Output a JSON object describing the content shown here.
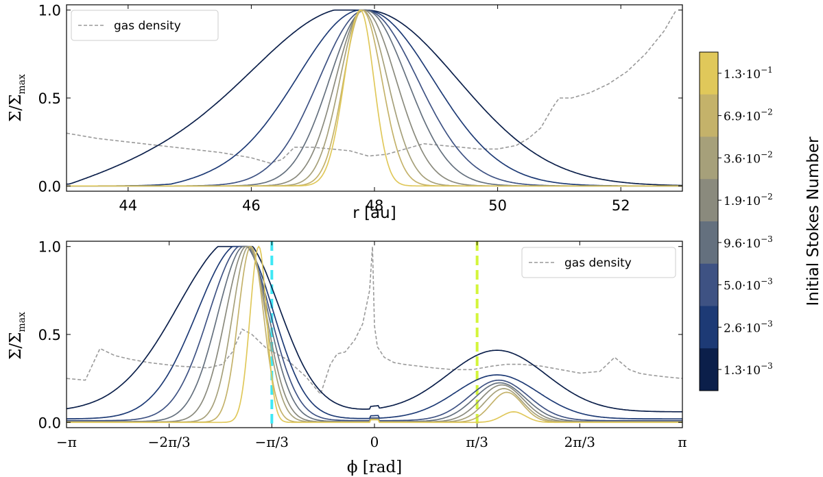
{
  "colors": {
    "gas": "#999999",
    "cyan_line": "#3ee8f5",
    "lime_line": "#d4f53a",
    "series": [
      "#0b1f4a",
      "#1d3a75",
      "#3e5283",
      "#64707e",
      "#8a8a7d",
      "#a6a07a",
      "#c4b26a",
      "#e0c85a"
    ]
  },
  "chart_data": [
    {
      "type": "line",
      "panel": "top",
      "xlabel": "r [au]",
      "ylabel_main": "Σ/Σ",
      "ylabel_sub": "max",
      "xlim": [
        43,
        53
      ],
      "ylim": [
        -0.03,
        1.03
      ],
      "xticks": [
        44,
        46,
        48,
        50,
        52
      ],
      "xtick_labels": [
        "44",
        "46",
        "48",
        "50",
        "52"
      ],
      "yticks": [
        0.0,
        0.5,
        1.0
      ],
      "ytick_labels": [
        "0.0",
        "0.5",
        "1.0"
      ],
      "legend": {
        "label": "gas density",
        "position": "top-left"
      },
      "gas_density": {
        "x": [
          43.0,
          43.5,
          44.0,
          44.5,
          45.0,
          45.5,
          46.0,
          46.3,
          46.5,
          46.7,
          47.0,
          47.3,
          47.6,
          47.9,
          48.2,
          48.5,
          48.8,
          49.1,
          49.4,
          49.7,
          50.0,
          50.3,
          50.5,
          50.7,
          50.9,
          51.0,
          51.2,
          51.5,
          51.8,
          52.1,
          52.4,
          52.7,
          52.9
        ],
        "y": [
          0.3,
          0.27,
          0.25,
          0.23,
          0.21,
          0.19,
          0.16,
          0.13,
          0.15,
          0.22,
          0.22,
          0.21,
          0.2,
          0.17,
          0.18,
          0.21,
          0.24,
          0.23,
          0.22,
          0.21,
          0.21,
          0.23,
          0.27,
          0.33,
          0.45,
          0.5,
          0.5,
          0.53,
          0.58,
          0.65,
          0.75,
          0.88,
          1.0
        ]
      },
      "series_params": [
        {
          "name": "1.3e-3",
          "center": 47.85,
          "sigma_left": 1.6,
          "sigma_right": 1.5,
          "shoulder": 0.25
        },
        {
          "name": "2.6e-3",
          "center": 47.85,
          "sigma_left": 1.05,
          "sigma_right": 1.1,
          "shoulder": 0.08
        },
        {
          "name": "5.0e-3",
          "center": 47.85,
          "sigma_left": 0.75,
          "sigma_right": 0.85,
          "shoulder": 0
        },
        {
          "name": "9.6e-3",
          "center": 47.85,
          "sigma_left": 0.58,
          "sigma_right": 0.68,
          "shoulder": 0
        },
        {
          "name": "1.9e-2",
          "center": 47.82,
          "sigma_left": 0.45,
          "sigma_right": 0.53,
          "shoulder": 0
        },
        {
          "name": "3.6e-2",
          "center": 47.8,
          "sigma_left": 0.36,
          "sigma_right": 0.41,
          "shoulder": 0
        },
        {
          "name": "6.9e-2",
          "center": 47.8,
          "sigma_left": 0.3,
          "sigma_right": 0.32,
          "shoulder": 0
        },
        {
          "name": "1.3e-1",
          "center": 47.77,
          "sigma_left": 0.26,
          "sigma_right": 0.22,
          "shoulder": 0
        }
      ]
    },
    {
      "type": "line",
      "panel": "bottom",
      "xlabel": "ϕ [rad]",
      "ylabel_main": "Σ/Σ",
      "ylabel_sub": "max",
      "xlim": [
        -3.1416,
        3.1416
      ],
      "ylim": [
        -0.03,
        1.03
      ],
      "xticks": [
        -3.1416,
        -2.0944,
        -1.0472,
        0,
        1.0472,
        2.0944,
        3.1416
      ],
      "xtick_labels": [
        "−π",
        "−2π/3",
        "−π/3",
        "0",
        "π/3",
        "2π/3",
        "π"
      ],
      "yticks": [
        0.0,
        0.5,
        1.0
      ],
      "ytick_labels": [
        "0.0",
        "0.5",
        "1.0"
      ],
      "legend": {
        "label": "gas density",
        "position": "top-right"
      },
      "vertical_lines": [
        {
          "x": -1.0472,
          "color": "cyan"
        },
        {
          "x": 1.0472,
          "color": "lime"
        }
      ],
      "gas_density": {
        "x": [
          -3.14,
          -2.95,
          -2.8,
          -2.65,
          -2.5,
          -2.3,
          -2.0,
          -1.7,
          -1.55,
          -1.45,
          -1.35,
          -1.25,
          -1.1,
          -0.9,
          -0.7,
          -0.55,
          -0.45,
          -0.38,
          -0.3,
          -0.2,
          -0.12,
          -0.05,
          -0.02,
          0.0,
          0.03,
          0.1,
          0.2,
          0.3,
          0.45,
          0.6,
          0.8,
          1.0,
          1.2,
          1.35,
          1.5,
          1.7,
          1.9,
          2.1,
          2.3,
          2.45,
          2.6,
          2.7,
          2.8,
          2.95,
          3.14
        ],
        "y": [
          0.25,
          0.24,
          0.42,
          0.38,
          0.36,
          0.34,
          0.32,
          0.31,
          0.33,
          0.4,
          0.53,
          0.5,
          0.42,
          0.36,
          0.26,
          0.16,
          0.33,
          0.39,
          0.4,
          0.47,
          0.56,
          0.75,
          1.0,
          0.55,
          0.43,
          0.37,
          0.34,
          0.33,
          0.32,
          0.31,
          0.3,
          0.3,
          0.32,
          0.33,
          0.33,
          0.32,
          0.3,
          0.28,
          0.29,
          0.37,
          0.3,
          0.28,
          0.27,
          0.26,
          0.25
        ]
      },
      "series_params": [
        {
          "name": "1.3e-3",
          "center": -1.38,
          "sigma_left": 0.62,
          "sigma_right": 0.4,
          "bump_center": 1.25,
          "bump_amp": 0.35,
          "bump_sigma": 0.5,
          "floor": 0.06
        },
        {
          "name": "2.6e-3",
          "center": -1.36,
          "sigma_left": 0.45,
          "sigma_right": 0.33,
          "bump_center": 1.25,
          "bump_amp": 0.25,
          "bump_sigma": 0.42,
          "floor": 0.02
        },
        {
          "name": "5.0e-3",
          "center": -1.34,
          "sigma_left": 0.35,
          "sigma_right": 0.28,
          "bump_center": 1.27,
          "bump_amp": 0.23,
          "bump_sigma": 0.3,
          "floor": 0.01
        },
        {
          "name": "9.6e-3",
          "center": -1.32,
          "sigma_left": 0.28,
          "sigma_right": 0.24,
          "bump_center": 1.28,
          "bump_amp": 0.22,
          "bump_sigma": 0.26,
          "floor": 0.005
        },
        {
          "name": "1.9e-2",
          "center": -1.3,
          "sigma_left": 0.22,
          "sigma_right": 0.2,
          "bump_center": 1.3,
          "bump_amp": 0.21,
          "bump_sigma": 0.22,
          "floor": 0.003
        },
        {
          "name": "3.6e-2",
          "center": -1.28,
          "sigma_left": 0.17,
          "sigma_right": 0.17,
          "bump_center": 1.32,
          "bump_amp": 0.19,
          "bump_sigma": 0.19,
          "floor": 0.002
        },
        {
          "name": "6.9e-2",
          "center": -1.26,
          "sigma_left": 0.13,
          "sigma_right": 0.13,
          "bump_center": 1.35,
          "bump_amp": 0.17,
          "bump_sigma": 0.16,
          "floor": 0.001
        },
        {
          "name": "1.3e-1",
          "center": -1.18,
          "sigma_left": 0.09,
          "sigma_right": 0.08,
          "bump_center": 1.42,
          "bump_amp": 0.06,
          "bump_sigma": 0.12,
          "floor": 0.0
        }
      ]
    }
  ],
  "colorbar": {
    "label": "Initial Stokes Number",
    "ticks": [
      {
        "mant": "1.3",
        "exp": "−1"
      },
      {
        "mant": "6.9",
        "exp": "−2"
      },
      {
        "mant": "3.6",
        "exp": "−2"
      },
      {
        "mant": "1.9",
        "exp": "−2"
      },
      {
        "mant": "9.6",
        "exp": "−3"
      },
      {
        "mant": "5.0",
        "exp": "−3"
      },
      {
        "mant": "2.6",
        "exp": "−3"
      },
      {
        "mant": "1.3",
        "exp": "−3"
      }
    ],
    "tick_base": "10"
  }
}
